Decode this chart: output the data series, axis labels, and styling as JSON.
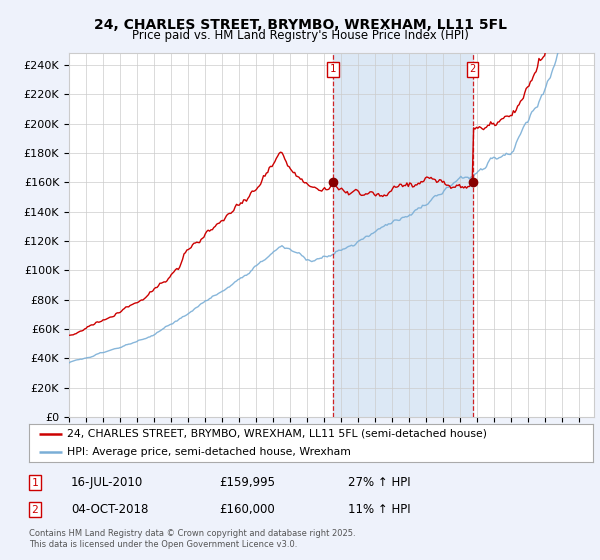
{
  "title": "24, CHARLES STREET, BRYMBO, WREXHAM, LL11 5FL",
  "subtitle": "Price paid vs. HM Land Registry's House Price Index (HPI)",
  "ylabel_ticks": [
    "£0",
    "£20K",
    "£40K",
    "£60K",
    "£80K",
    "£100K",
    "£120K",
    "£140K",
    "£160K",
    "£180K",
    "£200K",
    "£220K",
    "£240K"
  ],
  "ytick_values": [
    0,
    20000,
    40000,
    60000,
    80000,
    100000,
    120000,
    140000,
    160000,
    180000,
    200000,
    220000,
    240000
  ],
  "ylim": [
    0,
    248000
  ],
  "sale1_year": 2010.54,
  "sale1_price": 159995,
  "sale2_year": 2018.76,
  "sale2_price": 160000,
  "sale1_label": "16-JUL-2010",
  "sale1_amount": "£159,995",
  "sale1_hpi": "27% ↑ HPI",
  "sale2_label": "04-OCT-2018",
  "sale2_amount": "£160,000",
  "sale2_hpi": "11% ↑ HPI",
  "legend_line1": "24, CHARLES STREET, BRYMBO, WREXHAM, LL11 5FL (semi-detached house)",
  "legend_line2": "HPI: Average price, semi-detached house, Wrexham",
  "footnote": "Contains HM Land Registry data © Crown copyright and database right 2025.\nThis data is licensed under the Open Government Licence v3.0.",
  "bg_color": "#eef2fb",
  "plot_bg_color": "#ffffff",
  "shade_color": "#dce8f5",
  "red_color": "#cc0000",
  "blue_color": "#7aaed6",
  "xmin": 1995.0,
  "xmax": 2025.9
}
